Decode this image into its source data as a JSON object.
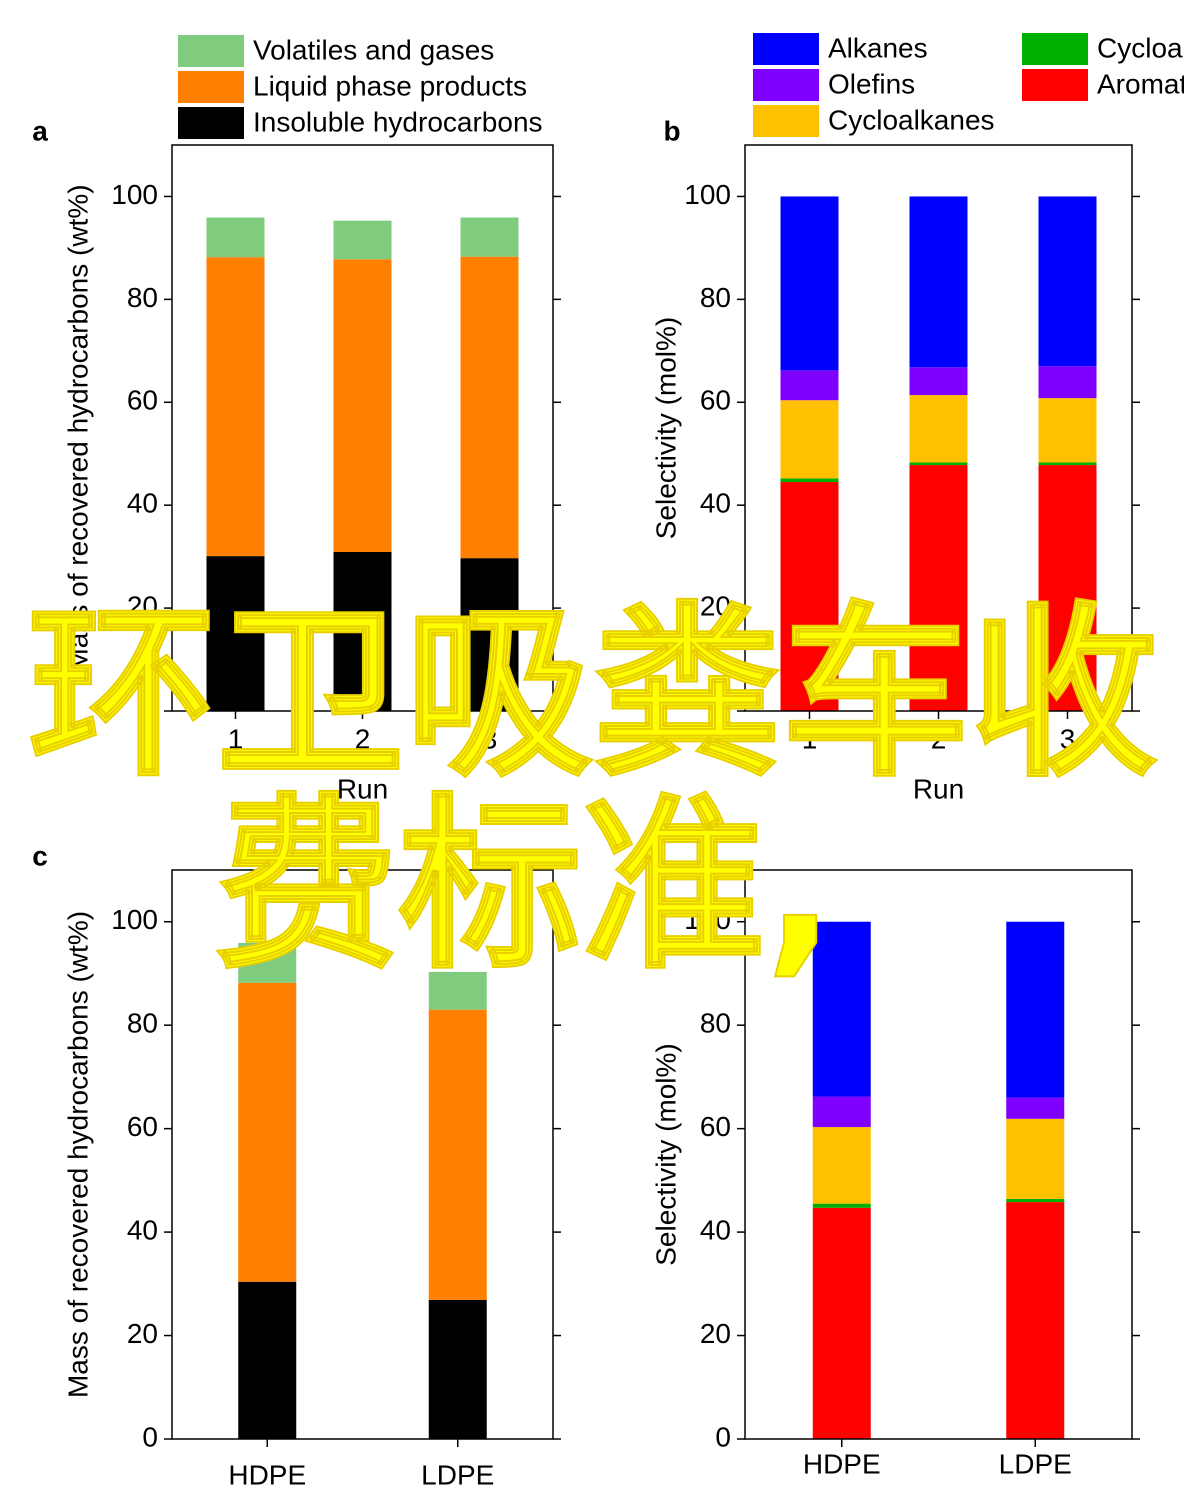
{
  "chart_data": [
    {
      "type": "bar",
      "stacked": true,
      "panel_label": "a",
      "legend": true,
      "ylabel": "Mass of recovered hydrocarbons (wt%)",
      "xlabel": "Run",
      "categories": [
        "1",
        "2",
        "3"
      ],
      "ylim": [
        0,
        110
      ],
      "yticks": [
        0,
        20,
        40,
        60,
        80,
        100
      ],
      "series": [
        {
          "name": "Insoluble hydrocarbons",
          "color": "#000000",
          "values": [
            30.1,
            30.9,
            29.7
          ]
        },
        {
          "name": "Liquid phase products",
          "color": "#ff7f00",
          "values": [
            58.1,
            56.9,
            58.6
          ]
        },
        {
          "name": "Volatiles and gases",
          "color": "#7fcc7f",
          "values": [
            7.7,
            7.5,
            7.6
          ]
        }
      ]
    },
    {
      "type": "bar",
      "stacked": true,
      "panel_label": "b",
      "legend": true,
      "ylabel": "Selectivity (mol%)",
      "xlabel": "Run",
      "categories": [
        "1",
        "2",
        "3"
      ],
      "ylim": [
        0,
        110
      ],
      "yticks": [
        0,
        20,
        40,
        60,
        80,
        100
      ],
      "series": [
        {
          "name": "Aromatics",
          "color": "#ff0000",
          "values": [
            44.5,
            47.8,
            47.8
          ]
        },
        {
          "name": "Cycloalkenes",
          "color": "#00b000",
          "values": [
            0.7,
            0.5,
            0.5
          ]
        },
        {
          "name": "Cycloalkanes",
          "color": "#ffc000",
          "values": [
            15.2,
            13.1,
            12.5
          ]
        },
        {
          "name": "Olefins",
          "color": "#8000ff",
          "values": [
            5.8,
            5.4,
            6.2
          ]
        },
        {
          "name": "Alkanes",
          "color": "#0000ff",
          "values": [
            33.8,
            33.2,
            33.0
          ]
        }
      ]
    },
    {
      "type": "bar",
      "stacked": true,
      "panel_label": "c",
      "legend": false,
      "ylabel": "Mass of recovered hydrocarbons (wt%)",
      "categories": [
        "HDPE",
        "LDPE"
      ],
      "ylim": [
        0,
        110
      ],
      "yticks": [
        0,
        20,
        40,
        60,
        80,
        100
      ],
      "series": [
        {
          "color": "#000000",
          "values": [
            30.4,
            26.9
          ]
        },
        {
          "color": "#ff7f00",
          "values": [
            57.8,
            56.1
          ]
        },
        {
          "color": "#7fcc7f",
          "values": [
            7.7,
            7.3
          ]
        }
      ]
    },
    {
      "type": "bar",
      "stacked": true,
      "legend": false,
      "ylabel": "Selectivity (mol%)",
      "categories": [
        "HDPE",
        "LDPE"
      ],
      "ylim": [
        0,
        110
      ],
      "yticks": [
        0,
        20,
        40,
        60,
        80,
        100
      ],
      "series": [
        {
          "color": "#ff0000",
          "values": [
            44.7,
            45.8
          ]
        },
        {
          "color": "#00b000",
          "values": [
            0.8,
            0.6
          ]
        },
        {
          "color": "#ffc000",
          "values": [
            14.8,
            15.5
          ]
        },
        {
          "color": "#8000ff",
          "values": [
            5.9,
            4.1
          ]
        },
        {
          "color": "#0000ff",
          "values": [
            33.8,
            34.0
          ]
        }
      ]
    }
  ],
  "overlay_text": [
    "环卫吸粪车收",
    "费标准,"
  ]
}
